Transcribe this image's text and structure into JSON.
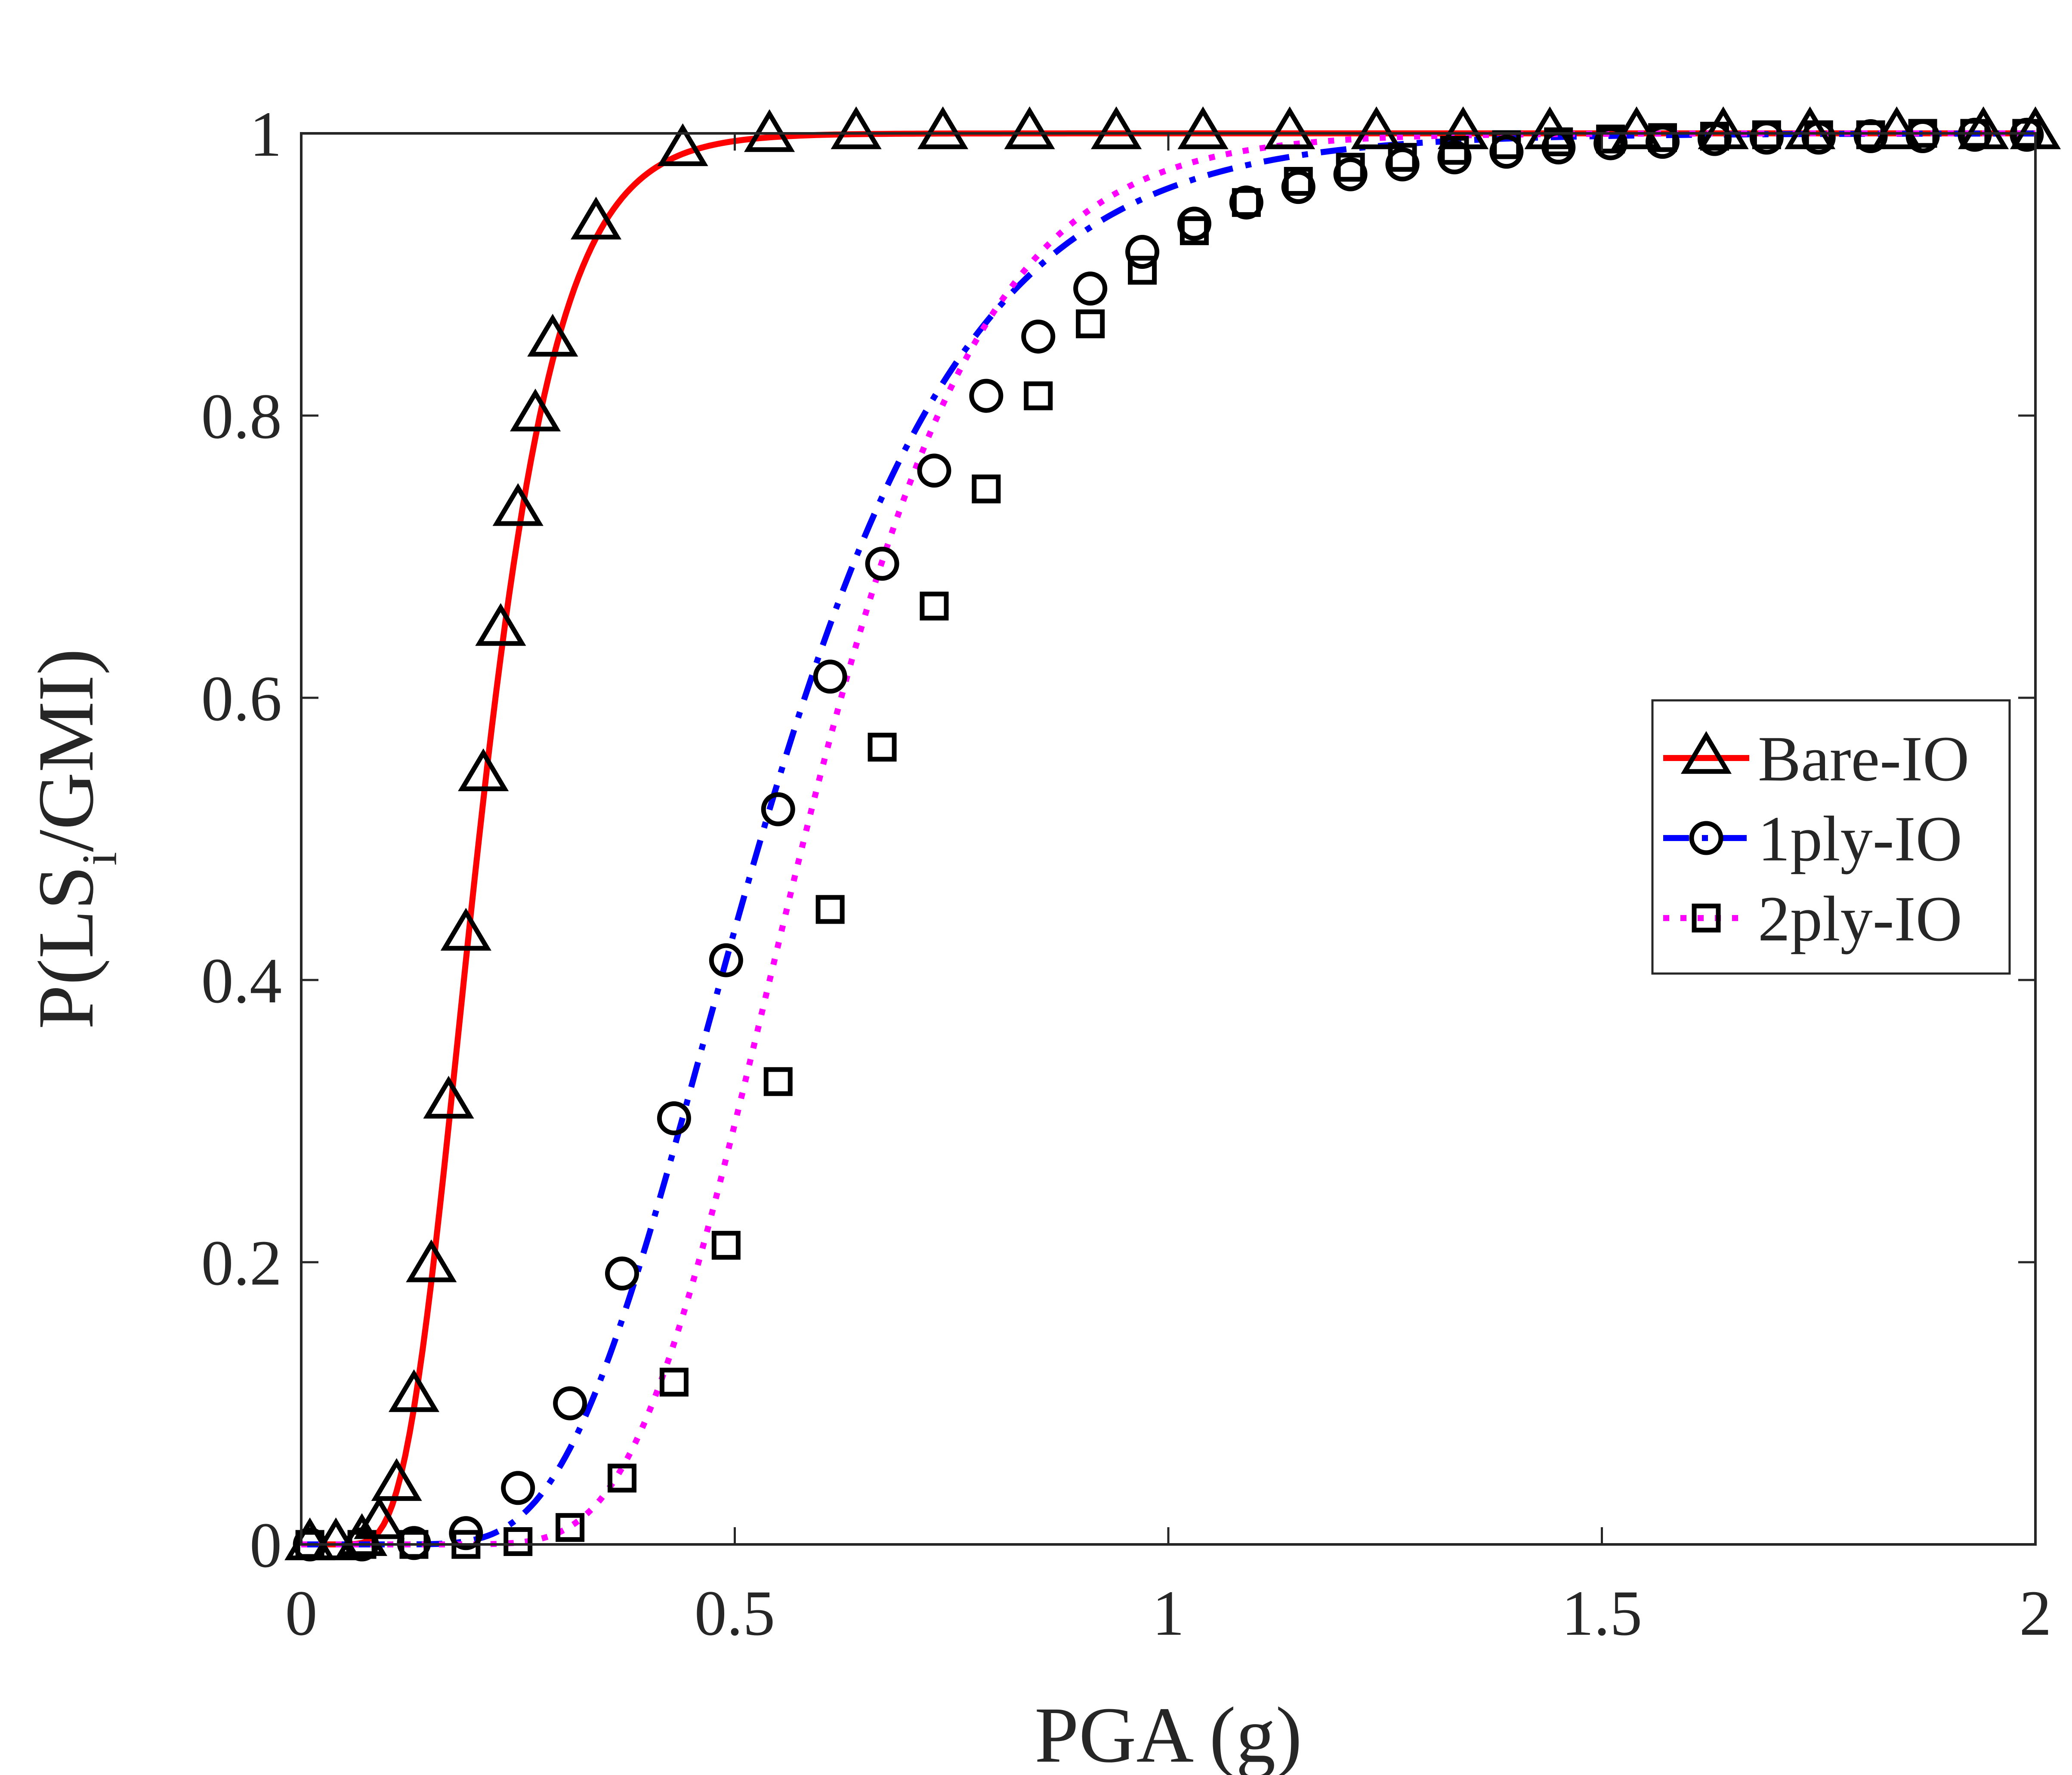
{
  "chart_data": {
    "type": "line",
    "title": "",
    "xlabel": "PGA (g)",
    "ylabel": {
      "prefix": "P(LS",
      "subscript": "i",
      "suffix": "/GMI)"
    },
    "xlim": [
      0,
      2
    ],
    "ylim": [
      0,
      1
    ],
    "x_ticks": [
      {
        "value": 0,
        "label": "0"
      },
      {
        "value": 0.5,
        "label": "0.5"
      },
      {
        "value": 1,
        "label": "1"
      },
      {
        "value": 1.5,
        "label": "1.5"
      },
      {
        "value": 2,
        "label": "2"
      }
    ],
    "y_ticks": [
      {
        "value": 0,
        "label": "0"
      },
      {
        "value": 0.2,
        "label": "0.2"
      },
      {
        "value": 0.4,
        "label": "0.4"
      },
      {
        "value": 0.6,
        "label": "0.6"
      },
      {
        "value": 0.8,
        "label": "0.8"
      },
      {
        "value": 1,
        "label": "1"
      }
    ],
    "grid": false,
    "legend_position": "right-middle",
    "series": [
      {
        "name": "Bare-IO",
        "color": "#ff0000",
        "line_style": "solid",
        "marker": "triangle",
        "curve": {
          "model": "lognormal-cdf",
          "median": 0.205,
          "beta": 0.35
        },
        "markers": [
          [
            0.01,
            0.0
          ],
          [
            0.04,
            0.0
          ],
          [
            0.07,
            0.003
          ],
          [
            0.09,
            0.015
          ],
          [
            0.11,
            0.042
          ],
          [
            0.13,
            0.105
          ],
          [
            0.15,
            0.197
          ],
          [
            0.17,
            0.313
          ],
          [
            0.19,
            0.432
          ],
          [
            0.21,
            0.545
          ],
          [
            0.23,
            0.648
          ],
          [
            0.25,
            0.733
          ],
          [
            0.27,
            0.8
          ],
          [
            0.29,
            0.853
          ],
          [
            0.34,
            0.936
          ],
          [
            0.44,
            0.988
          ],
          [
            0.54,
            0.998
          ],
          [
            0.64,
            1.0
          ],
          [
            0.74,
            1.0
          ],
          [
            0.84,
            1.0
          ],
          [
            0.94,
            1.0
          ],
          [
            1.04,
            1.0
          ],
          [
            1.14,
            1.0
          ],
          [
            1.24,
            1.0
          ],
          [
            1.34,
            1.0
          ],
          [
            1.44,
            1.0
          ],
          [
            1.54,
            1.0
          ],
          [
            1.64,
            1.0
          ],
          [
            1.74,
            1.0
          ],
          [
            1.84,
            1.0
          ],
          [
            1.94,
            1.0
          ],
          [
            2.0,
            1.0
          ]
        ]
      },
      {
        "name": "1ply-IO",
        "color": "#0000ff",
        "line_style": "dashdot",
        "marker": "circle",
        "curve": {
          "model": "lognormal-cdf",
          "median": 0.53,
          "beta": 0.36
        },
        "markers": [
          [
            0.01,
            0.0
          ],
          [
            0.07,
            0.0
          ],
          [
            0.13,
            0.001
          ],
          [
            0.19,
            0.008
          ],
          [
            0.25,
            0.04
          ],
          [
            0.31,
            0.1
          ],
          [
            0.37,
            0.192
          ],
          [
            0.43,
            0.302
          ],
          [
            0.49,
            0.414
          ],
          [
            0.55,
            0.521
          ],
          [
            0.61,
            0.615
          ],
          [
            0.67,
            0.695
          ],
          [
            0.73,
            0.761
          ],
          [
            0.79,
            0.814
          ],
          [
            0.85,
            0.856
          ],
          [
            0.91,
            0.89
          ],
          [
            0.97,
            0.916
          ],
          [
            1.03,
            0.936
          ],
          [
            1.09,
            0.951
          ],
          [
            1.15,
            0.962
          ],
          [
            1.21,
            0.971
          ],
          [
            1.27,
            0.978
          ],
          [
            1.33,
            0.983
          ],
          [
            1.39,
            0.987
          ],
          [
            1.45,
            0.99
          ],
          [
            1.51,
            0.993
          ],
          [
            1.57,
            0.994
          ],
          [
            1.63,
            0.996
          ],
          [
            1.69,
            0.997
          ],
          [
            1.75,
            0.997
          ],
          [
            1.81,
            0.998
          ],
          [
            1.87,
            0.998
          ],
          [
            1.93,
            0.999
          ],
          [
            1.99,
            0.999
          ]
        ]
      },
      {
        "name": "2ply-IO",
        "color": "#ff00ff",
        "line_style": "dotted",
        "marker": "square",
        "curve": {
          "model": "lognormal-cdf",
          "median": 0.58,
          "beta": 0.28
        },
        "markers": [
          [
            0.01,
            0.0
          ],
          [
            0.07,
            0.0
          ],
          [
            0.13,
            0.0
          ],
          [
            0.19,
            0.0
          ],
          [
            0.25,
            0.002
          ],
          [
            0.31,
            0.012
          ],
          [
            0.37,
            0.047
          ],
          [
            0.43,
            0.115
          ],
          [
            0.49,
            0.212
          ],
          [
            0.55,
            0.328
          ],
          [
            0.61,
            0.45
          ],
          [
            0.67,
            0.565
          ],
          [
            0.73,
            0.665
          ],
          [
            0.79,
            0.748
          ],
          [
            0.85,
            0.814
          ],
          [
            0.91,
            0.865
          ],
          [
            0.97,
            0.903
          ],
          [
            1.03,
            0.931
          ],
          [
            1.09,
            0.951
          ],
          [
            1.15,
            0.966
          ],
          [
            1.21,
            0.976
          ],
          [
            1.27,
            0.983
          ],
          [
            1.33,
            0.988
          ],
          [
            1.39,
            0.992
          ],
          [
            1.45,
            0.994
          ],
          [
            1.51,
            0.996
          ],
          [
            1.57,
            0.997
          ],
          [
            1.63,
            0.998
          ],
          [
            1.69,
            0.999
          ],
          [
            1.75,
            0.999
          ],
          [
            1.81,
            0.999
          ],
          [
            1.87,
            1.0
          ],
          [
            1.93,
            1.0
          ],
          [
            1.99,
            1.0
          ]
        ]
      }
    ]
  }
}
